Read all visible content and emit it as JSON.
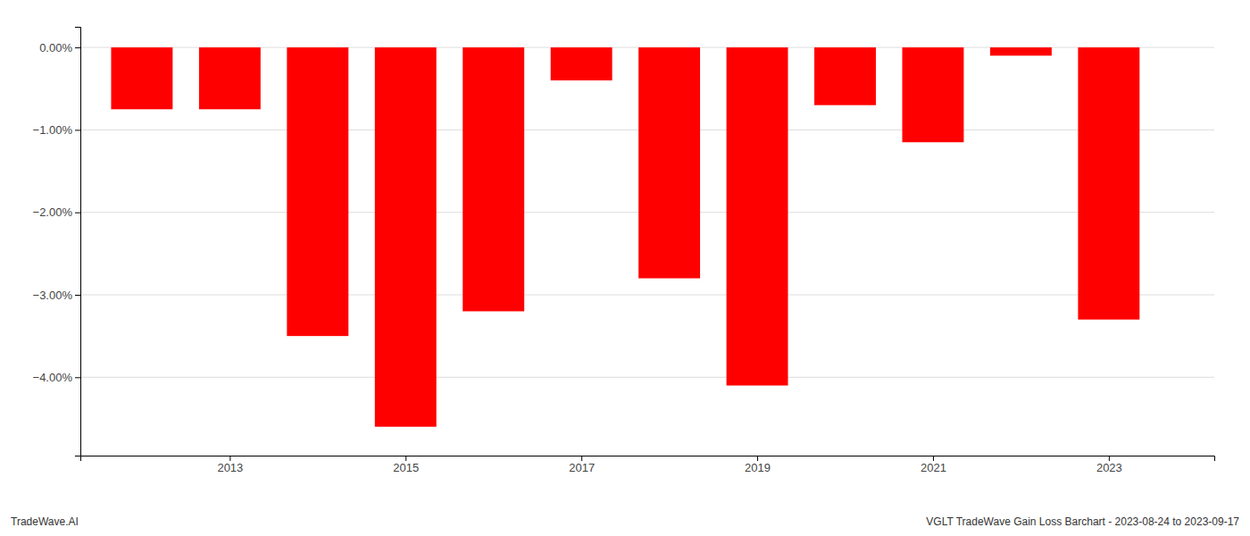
{
  "chart_data": {
    "type": "bar",
    "x": [
      2012,
      2013,
      2014,
      2015,
      2016,
      2017,
      2018,
      2019,
      2020,
      2021,
      2022,
      2023
    ],
    "values": [
      -0.0075,
      -0.0075,
      -0.035,
      -0.046,
      -0.032,
      -0.004,
      -0.028,
      -0.041,
      -0.007,
      -0.0115,
      -0.001,
      -0.033
    ],
    "color": "#ff0000",
    "xlim": [
      2011.3,
      2024.2
    ],
    "xticks": [
      2013,
      2015,
      2017,
      2019,
      2021,
      2023
    ],
    "ylim": [
      -0.0495,
      0.0025
    ],
    "yticks": [
      {
        "value": 0.0,
        "label": "0.00%"
      },
      {
        "value": -0.01,
        "label": "−1.00%"
      },
      {
        "value": -0.02,
        "label": "−2.00%"
      },
      {
        "value": -0.03,
        "label": "−3.00%"
      },
      {
        "value": -0.04,
        "label": "−4.00%"
      }
    ],
    "grid": true,
    "annotations": [
      "TradeWave.AI",
      "VGLT TradeWave Gain Loss Barchart - 2023-08-24 to 2023-09-17"
    ]
  }
}
